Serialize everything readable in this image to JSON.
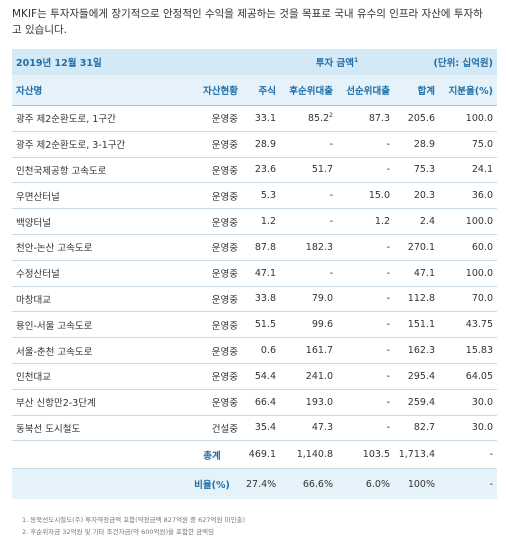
{
  "intro": "MKIF는 투자자들에게 장기적으로 안정적인 수익을 제공하는 것을 목표로 국내 유수의 인프라 자산에 투자하고 있습니다.",
  "table": {
    "date_label": "2019년 12월 31일",
    "investment_label": "투자 금액",
    "investment_note": "1",
    "unit_label": "(단위: 십억원)",
    "columns": [
      "자산명",
      "자산현황",
      "주식",
      "후순위대출",
      "선순위대출",
      "합계",
      "지분율(%)"
    ],
    "rows": [
      {
        "name": "광주 제2순환도로, 1구간",
        "status": "운영중",
        "equity": "33.1",
        "sub": "85.2",
        "sub_note": "2",
        "senior": "87.3",
        "total": "205.6",
        "share": "100.0"
      },
      {
        "name": "광주 제2순환도로, 3-1구간",
        "status": "운영중",
        "equity": "28.9",
        "sub": "-",
        "sub_note": "",
        "senior": "-",
        "total": "28.9",
        "share": "75.0"
      },
      {
        "name": "인천국제공항 고속도로",
        "status": "운영중",
        "equity": "23.6",
        "sub": "51.7",
        "sub_note": "",
        "senior": "-",
        "total": "75.3",
        "share": "24.1"
      },
      {
        "name": "우면산터널",
        "status": "운영중",
        "equity": "5.3",
        "sub": "-",
        "sub_note": "",
        "senior": "15.0",
        "total": "20.3",
        "share": "36.0"
      },
      {
        "name": "백양터널",
        "status": "운영중",
        "equity": "1.2",
        "sub": "-",
        "sub_note": "",
        "senior": "1.2",
        "total": "2.4",
        "share": "100.0"
      },
      {
        "name": "천안-논산 고속도로",
        "status": "운영중",
        "equity": "87.8",
        "sub": "182.3",
        "sub_note": "",
        "senior": "-",
        "total": "270.1",
        "share": "60.0"
      },
      {
        "name": "수정산터널",
        "status": "운영중",
        "equity": "47.1",
        "sub": "-",
        "sub_note": "",
        "senior": "-",
        "total": "47.1",
        "share": "100.0"
      },
      {
        "name": "마창대교",
        "status": "운영중",
        "equity": "33.8",
        "sub": "79.0",
        "sub_note": "",
        "senior": "-",
        "total": "112.8",
        "share": "70.0"
      },
      {
        "name": "용인-서울 고속도로",
        "status": "운영중",
        "equity": "51.5",
        "sub": "99.6",
        "sub_note": "",
        "senior": "-",
        "total": "151.1",
        "share": "43.75"
      },
      {
        "name": "서울-춘천 고속도로",
        "status": "운영중",
        "equity": "0.6",
        "sub": "161.7",
        "sub_note": "",
        "senior": "-",
        "total": "162.3",
        "share": "15.83"
      },
      {
        "name": "인천대교",
        "status": "운영중",
        "equity": "54.4",
        "sub": "241.0",
        "sub_note": "",
        "senior": "-",
        "total": "295.4",
        "share": "64.05"
      },
      {
        "name": "부산 신항만2-3단계",
        "status": "운영중",
        "equity": "66.4",
        "sub": "193.0",
        "sub_note": "",
        "senior": "-",
        "total": "259.4",
        "share": "30.0"
      },
      {
        "name": "동북선 도시철도",
        "status": "건설중",
        "equity": "35.4",
        "sub": "47.3",
        "sub_note": "",
        "senior": "-",
        "total": "82.7",
        "share": "30.0"
      }
    ],
    "total_row": {
      "label": "총계",
      "equity": "469.1",
      "sub": "1,140.8",
      "senior": "103.5",
      "total": "1,713.4",
      "share": "-"
    },
    "ratio_row": {
      "label": "비율(%)",
      "equity": "27.4%",
      "sub": "66.6%",
      "senior": "6.0%",
      "total": "100%",
      "share": "-"
    }
  },
  "notes": [
    "1. 동북선도시철도(주) 투자약정금액 포함(약정금액 827억원 중 627억원 미인출)",
    "2. 후순위자금 32억원 및 기타 조건자금(약 600억원)을 포함한 금액임"
  ]
}
